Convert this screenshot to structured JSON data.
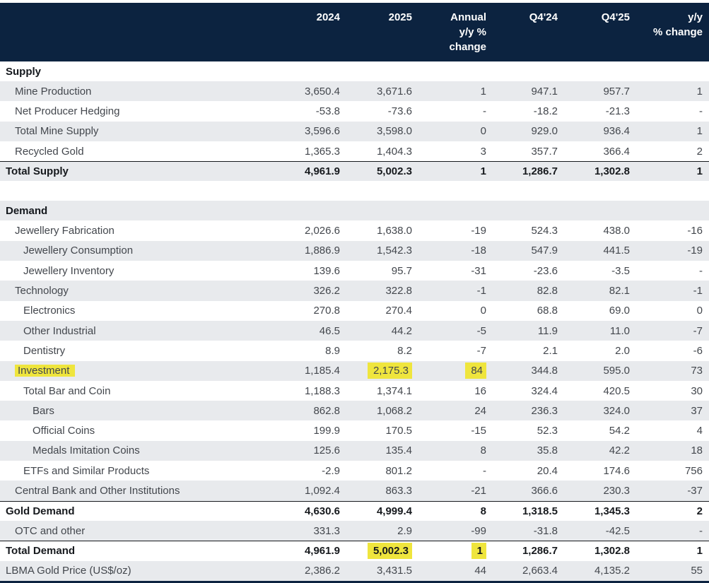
{
  "colors": {
    "header_bg": "#0c2340",
    "stripe_bg": "#e8eaed",
    "highlight": "#efe53d",
    "text": "#43474d",
    "bold_text": "#16191d",
    "header_text": "#ffffff"
  },
  "table": {
    "unit_note": "",
    "header": {
      "columns": [
        "2024",
        "2025",
        "Annual\ny/y %\nchange",
        "Q4'24",
        "Q4'25",
        "y/y\n% change"
      ]
    },
    "rows": [
      {
        "type": "section",
        "label": "Supply",
        "striped": false
      },
      {
        "type": "data",
        "label": "Mine Production",
        "level": 1,
        "striped": true,
        "values": [
          "3,650.4",
          "3,671.6",
          "1",
          "947.1",
          "957.7",
          "1"
        ]
      },
      {
        "type": "data",
        "label": "Net Producer Hedging",
        "level": 1,
        "striped": false,
        "values": [
          "-53.8",
          "-73.6",
          "-",
          "-18.2",
          "-21.3",
          "-"
        ]
      },
      {
        "type": "data",
        "label": "Total Mine Supply",
        "level": 1,
        "striped": true,
        "values": [
          "3,596.6",
          "3,598.0",
          "0",
          "929.0",
          "936.4",
          "1"
        ]
      },
      {
        "type": "data",
        "label": "Recycled Gold",
        "level": 1,
        "striped": false,
        "values": [
          "1,365.3",
          "1,404.3",
          "3",
          "357.7",
          "366.4",
          "2"
        ]
      },
      {
        "type": "data",
        "label": "Total Supply",
        "level": 0,
        "bold": true,
        "striped": true,
        "topBorder": true,
        "values": [
          "4,961.9",
          "5,002.3",
          "1",
          "1,286.7",
          "1,302.8",
          "1"
        ]
      },
      {
        "type": "gap"
      },
      {
        "type": "section",
        "label": "Demand",
        "striped": true
      },
      {
        "type": "data",
        "label": "Jewellery Fabrication",
        "level": 1,
        "striped": false,
        "values": [
          "2,026.6",
          "1,638.0",
          "-19",
          "524.3",
          "438.0",
          "-16"
        ]
      },
      {
        "type": "data",
        "label": "Jewellery Consumption",
        "level": 2,
        "striped": true,
        "values": [
          "1,886.9",
          "1,542.3",
          "-18",
          "547.9",
          "441.5",
          "-19"
        ]
      },
      {
        "type": "data",
        "label": "Jewellery Inventory",
        "level": 2,
        "striped": false,
        "values": [
          "139.6",
          "95.7",
          "-31",
          "-23.6",
          "-3.5",
          "-"
        ]
      },
      {
        "type": "data",
        "label": "Technology",
        "level": 1,
        "striped": true,
        "values": [
          "326.2",
          "322.8",
          "-1",
          "82.8",
          "82.1",
          "-1"
        ]
      },
      {
        "type": "data",
        "label": "Electronics",
        "level": 2,
        "striped": false,
        "values": [
          "270.8",
          "270.4",
          "0",
          "68.8",
          "69.0",
          "0"
        ]
      },
      {
        "type": "data",
        "label": "Other Industrial",
        "level": 2,
        "striped": true,
        "values": [
          "46.5",
          "44.2",
          "-5",
          "11.9",
          "11.0",
          "-7"
        ]
      },
      {
        "type": "data",
        "label": "Dentistry",
        "level": 2,
        "striped": false,
        "values": [
          "8.9",
          "8.2",
          "-7",
          "2.1",
          "2.0",
          "-6"
        ]
      },
      {
        "type": "data",
        "label": "Investment",
        "level": 1,
        "striped": true,
        "highlightLabel": true,
        "highlightCols": [
          1,
          2
        ],
        "values": [
          "1,185.4",
          "2,175.3",
          "84",
          "344.8",
          "595.0",
          "73"
        ]
      },
      {
        "type": "data",
        "label": "Total Bar and Coin",
        "level": 2,
        "striped": false,
        "values": [
          "1,188.3",
          "1,374.1",
          "16",
          "324.4",
          "420.5",
          "30"
        ]
      },
      {
        "type": "data",
        "label": "Bars",
        "level": 3,
        "striped": true,
        "values": [
          "862.8",
          "1,068.2",
          "24",
          "236.3",
          "324.0",
          "37"
        ]
      },
      {
        "type": "data",
        "label": "Official Coins",
        "level": 3,
        "striped": false,
        "values": [
          "199.9",
          "170.5",
          "-15",
          "52.3",
          "54.2",
          "4"
        ]
      },
      {
        "type": "data",
        "label": "Medals Imitation Coins",
        "level": 3,
        "striped": true,
        "values": [
          "125.6",
          "135.4",
          "8",
          "35.8",
          "42.2",
          "18"
        ]
      },
      {
        "type": "data",
        "label": "ETFs and Similar Products",
        "level": 2,
        "striped": false,
        "values": [
          "-2.9",
          "801.2",
          "-",
          "20.4",
          "174.6",
          "756"
        ]
      },
      {
        "type": "data",
        "label": "Central Bank and Other Institutions",
        "level": 1,
        "striped": true,
        "values": [
          "1,092.4",
          "863.3",
          "-21",
          "366.6",
          "230.3",
          "-37"
        ]
      },
      {
        "type": "data",
        "label": "Gold Demand",
        "level": 0,
        "bold": true,
        "striped": false,
        "topBorder": true,
        "values": [
          "4,630.6",
          "4,999.4",
          "8",
          "1,318.5",
          "1,345.3",
          "2"
        ]
      },
      {
        "type": "data",
        "label": "OTC and other",
        "level": 1,
        "striped": true,
        "values": [
          "331.3",
          "2.9",
          "-99",
          "-31.8",
          "-42.5",
          "-"
        ]
      },
      {
        "type": "data",
        "label": "Total Demand",
        "level": 0,
        "bold": true,
        "striped": false,
        "topBorder": true,
        "highlightCols": [
          1,
          2
        ],
        "values": [
          "4,961.9",
          "5,002.3",
          "1",
          "1,286.7",
          "1,302.8",
          "1"
        ]
      },
      {
        "type": "data",
        "label": "LBMA Gold Price (US$/oz)",
        "level": 0,
        "striped": true,
        "values": [
          "2,386.2",
          "3,431.5",
          "44",
          "2,663.4",
          "4,135.2",
          "55"
        ]
      }
    ]
  }
}
